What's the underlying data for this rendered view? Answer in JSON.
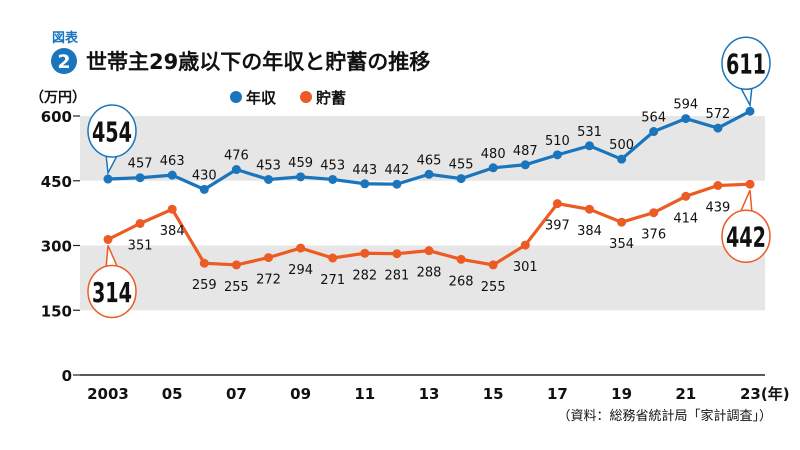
{
  "header": {
    "figure_label": "図表",
    "figure_number": "2",
    "title": "世帯主29歳以下の年収と貯蓄の推移"
  },
  "source": "（資料：総務省統計局「家計調査」）",
  "chart_data": {
    "type": "line",
    "title": "世帯主29歳以下の年収と貯蓄の推移",
    "ylabel": "（万円）",
    "xlabel": "(年)",
    "ylim": [
      0,
      600
    ],
    "yticks": [
      0,
      150,
      300,
      450,
      600
    ],
    "ytick_labels": [
      "0",
      "150",
      "300",
      "450",
      "600"
    ],
    "x": [
      2003,
      2004,
      2005,
      2006,
      2007,
      2008,
      2009,
      2010,
      2011,
      2012,
      2013,
      2014,
      2015,
      2016,
      2017,
      2018,
      2019,
      2020,
      2021,
      2022,
      2023
    ],
    "xtick_labels": [
      "2003",
      "05",
      "07",
      "09",
      "11",
      "13",
      "15",
      "17",
      "19",
      "21",
      "23"
    ],
    "xtick_suffix": "(年)",
    "legend": "top-center",
    "shaded_bands": [
      [
        150,
        300
      ],
      [
        450,
        600
      ]
    ],
    "series": [
      {
        "name": "年収",
        "color": "#1a75bc",
        "values": [
          454,
          457,
          463,
          430,
          476,
          453,
          459,
          453,
          443,
          442,
          465,
          455,
          480,
          487,
          510,
          531,
          500,
          564,
          594,
          572,
          611
        ]
      },
      {
        "name": "貯蓄",
        "color": "#ec5b24",
        "values": [
          314,
          351,
          384,
          259,
          255,
          272,
          294,
          271,
          282,
          281,
          288,
          268,
          255,
          301,
          397,
          384,
          354,
          376,
          414,
          439,
          442
        ]
      }
    ],
    "callouts": [
      {
        "series": 0,
        "index": 0,
        "text": "454"
      },
      {
        "series": 0,
        "index": 20,
        "text": "611"
      },
      {
        "series": 1,
        "index": 0,
        "text": "314"
      },
      {
        "series": 1,
        "index": 20,
        "text": "442"
      }
    ]
  }
}
